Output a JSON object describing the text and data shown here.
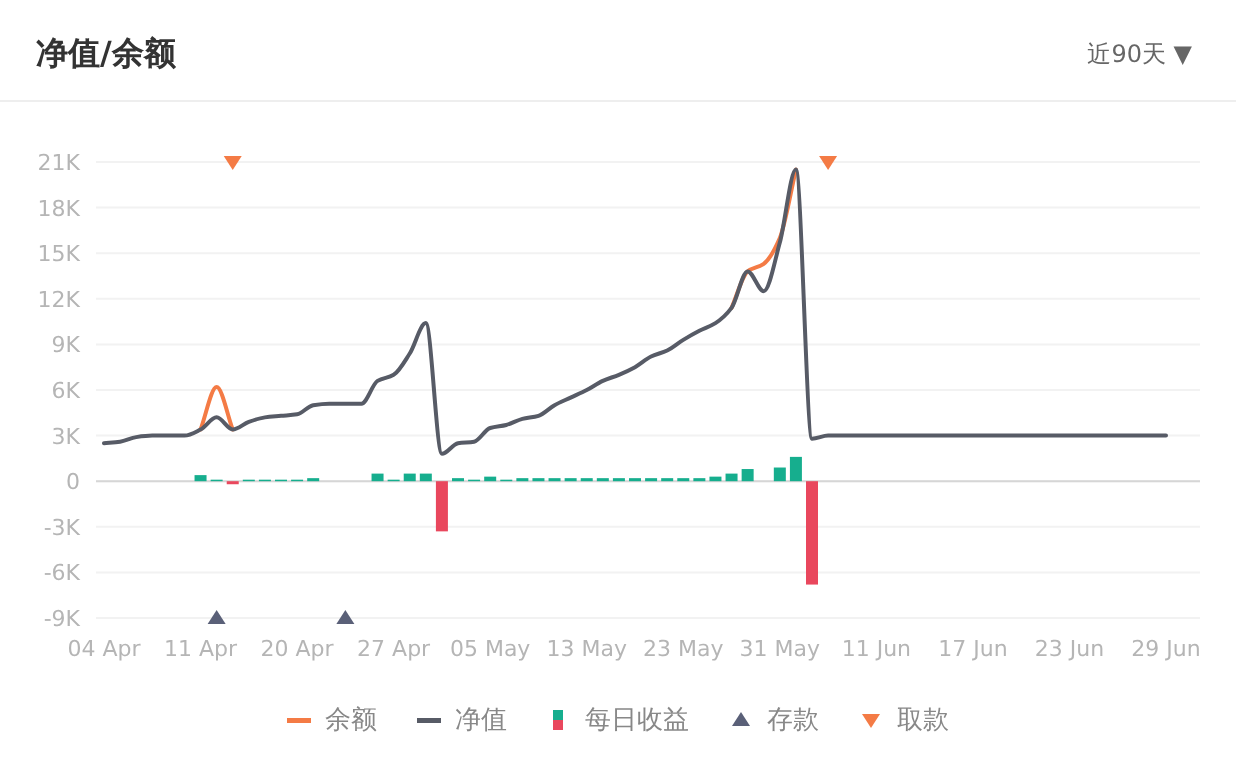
{
  "chart_data": {
    "type": "line",
    "title": "净值/余额",
    "annotations": [
      "近90天 ▼"
    ],
    "categories": [
      "04 Apr",
      null,
      null,
      null,
      null,
      null,
      "11 Apr",
      null,
      null,
      null,
      null,
      null,
      "20 Apr",
      null,
      null,
      null,
      null,
      null,
      "27 Apr",
      null,
      null,
      null,
      null,
      null,
      "05 May",
      null,
      null,
      null,
      null,
      null,
      "13 May",
      null,
      null,
      null,
      null,
      null,
      "23 May",
      null,
      null,
      null,
      null,
      null,
      "31 May",
      null,
      null,
      null,
      null,
      null,
      "11 Jun",
      null,
      null,
      null,
      null,
      null,
      "17 Jun",
      null,
      null,
      null,
      null,
      null,
      "23 Jun",
      null,
      null,
      null,
      null,
      null,
      "29 Jun"
    ],
    "ylim": [
      -9000,
      21000
    ],
    "yticks": [
      {
        "value": -9000,
        "label": "-9K"
      },
      {
        "value": -6000,
        "label": "-6K"
      },
      {
        "value": -3000,
        "label": "-3K"
      },
      0,
      {
        "value": 3000,
        "label": "3K"
      },
      {
        "value": 6000,
        "label": "6K"
      },
      {
        "value": 9000,
        "label": "9K"
      },
      {
        "value": 12000,
        "label": "12K"
      },
      {
        "value": 15000,
        "label": "15K"
      },
      {
        "value": 18000,
        "label": "18K"
      },
      {
        "value": 21000,
        "label": "21K"
      }
    ],
    "grid": "y",
    "legend": "bottom",
    "series": [
      {
        "name": "每日收益",
        "type": "bar",
        "values": [
          null,
          null,
          null,
          null,
          null,
          null,
          400,
          100,
          -200,
          100,
          100,
          100,
          100,
          200,
          0,
          0,
          0,
          500,
          100,
          500,
          500,
          -3300,
          200,
          100,
          300,
          100,
          200,
          200,
          200,
          200,
          200,
          200,
          200,
          200,
          200,
          200,
          200,
          200,
          300,
          500,
          800,
          0,
          900,
          1600,
          -6800,
          null,
          null,
          null,
          null,
          null,
          null,
          null,
          null,
          null,
          null,
          null,
          null,
          null,
          null,
          null,
          null,
          null,
          null,
          null,
          null,
          null,
          null
        ],
        "colors": [
          null,
          null,
          null,
          null,
          null,
          null,
          "#16ae8e",
          "#16ae8e",
          "#e9475d",
          "#16ae8e",
          "#16ae8e",
          "#16ae8e",
          "#16ae8e",
          "#16ae8e",
          "#16ae8e",
          "#16ae8e",
          "#16ae8e",
          "#16ae8e",
          "#16ae8e",
          "#16ae8e",
          "#16ae8e",
          "#e9475d",
          "#16ae8e",
          "#16ae8e",
          "#16ae8e",
          "#16ae8e",
          "#16ae8e",
          "#16ae8e",
          "#16ae8e",
          "#16ae8e",
          "#16ae8e",
          "#16ae8e",
          "#16ae8e",
          "#16ae8e",
          "#16ae8e",
          "#16ae8e",
          "#16ae8e",
          "#16ae8e",
          "#16ae8e",
          "#16ae8e",
          "#16ae8e",
          "#16ae8e",
          "#16ae8e",
          "#16ae8e",
          "#e9475d",
          null,
          null,
          null,
          null,
          null,
          null,
          null,
          null,
          null,
          null,
          null,
          null,
          null,
          null,
          null,
          null,
          null,
          null,
          null,
          null,
          null,
          null
        ]
      },
      {
        "name": "余额",
        "color": "#f47b45",
        "values": [
          null,
          null,
          null,
          null,
          null,
          null,
          3400,
          6200,
          3400,
          null,
          null,
          null,
          null,
          null,
          null,
          null,
          null,
          null,
          null,
          null,
          null,
          null,
          null,
          null,
          null,
          null,
          null,
          null,
          null,
          null,
          null,
          null,
          null,
          null,
          null,
          null,
          null,
          null,
          null,
          11400,
          13800,
          14300,
          16000,
          20500,
          null,
          null,
          null,
          null,
          null,
          null,
          null,
          null,
          null,
          null,
          null,
          null,
          null,
          null,
          null,
          null,
          null,
          null,
          null,
          null,
          null,
          null,
          null
        ]
      },
      {
        "name": "净值",
        "color": "#575b66",
        "values": [
          2500,
          2600,
          2900,
          3000,
          3000,
          3000,
          3400,
          4200,
          3400,
          3900,
          4200,
          4300,
          4400,
          5000,
          5100,
          5100,
          5100,
          6600,
          7000,
          8400,
          10400,
          1800,
          2500,
          2600,
          3500,
          3700,
          4100,
          4300,
          5000,
          5500,
          6000,
          6600,
          7000,
          7500,
          8200,
          8600,
          9300,
          9900,
          10400,
          11400,
          13800,
          12500,
          15700,
          20500,
          2800,
          3000,
          3000,
          3000,
          3000,
          3000,
          3000,
          3000,
          3000,
          3000,
          3000,
          3000,
          3000,
          3000,
          3000,
          3000,
          3000,
          3000,
          3000,
          3000,
          3000,
          3000,
          3000
        ]
      },
      {
        "name": "存款",
        "type": "scatter",
        "marker": "triangle",
        "color": "#5a6078",
        "values": [
          null,
          null,
          null,
          null,
          null,
          null,
          null,
          -9000,
          null,
          null,
          null,
          null,
          null,
          null,
          null,
          -9000,
          null,
          null,
          null,
          null,
          null,
          null,
          null,
          null,
          null,
          null,
          null,
          null,
          null,
          null,
          null,
          null,
          null,
          null,
          null,
          null,
          null,
          null,
          null,
          null,
          null,
          null,
          null,
          null,
          null,
          null,
          null,
          null,
          null,
          null,
          null,
          null,
          null,
          null,
          null,
          null,
          null,
          null,
          null,
          null,
          null,
          null,
          null,
          null,
          null,
          null,
          null
        ]
      },
      {
        "name": "取款",
        "type": "scatter",
        "marker": "triangle-down",
        "color": "#f47b45",
        "values": [
          null,
          null,
          null,
          null,
          null,
          null,
          null,
          null,
          21000,
          null,
          null,
          null,
          null,
          null,
          null,
          null,
          null,
          null,
          null,
          null,
          null,
          null,
          null,
          null,
          null,
          null,
          null,
          null,
          null,
          null,
          null,
          null,
          null,
          null,
          null,
          null,
          null,
          null,
          null,
          null,
          null,
          null,
          null,
          null,
          null,
          21000,
          null,
          null,
          null,
          null,
          null,
          null,
          null,
          null,
          null,
          null,
          null,
          null,
          null,
          null,
          null,
          null,
          null,
          null,
          null,
          null,
          null
        ]
      }
    ]
  }
}
